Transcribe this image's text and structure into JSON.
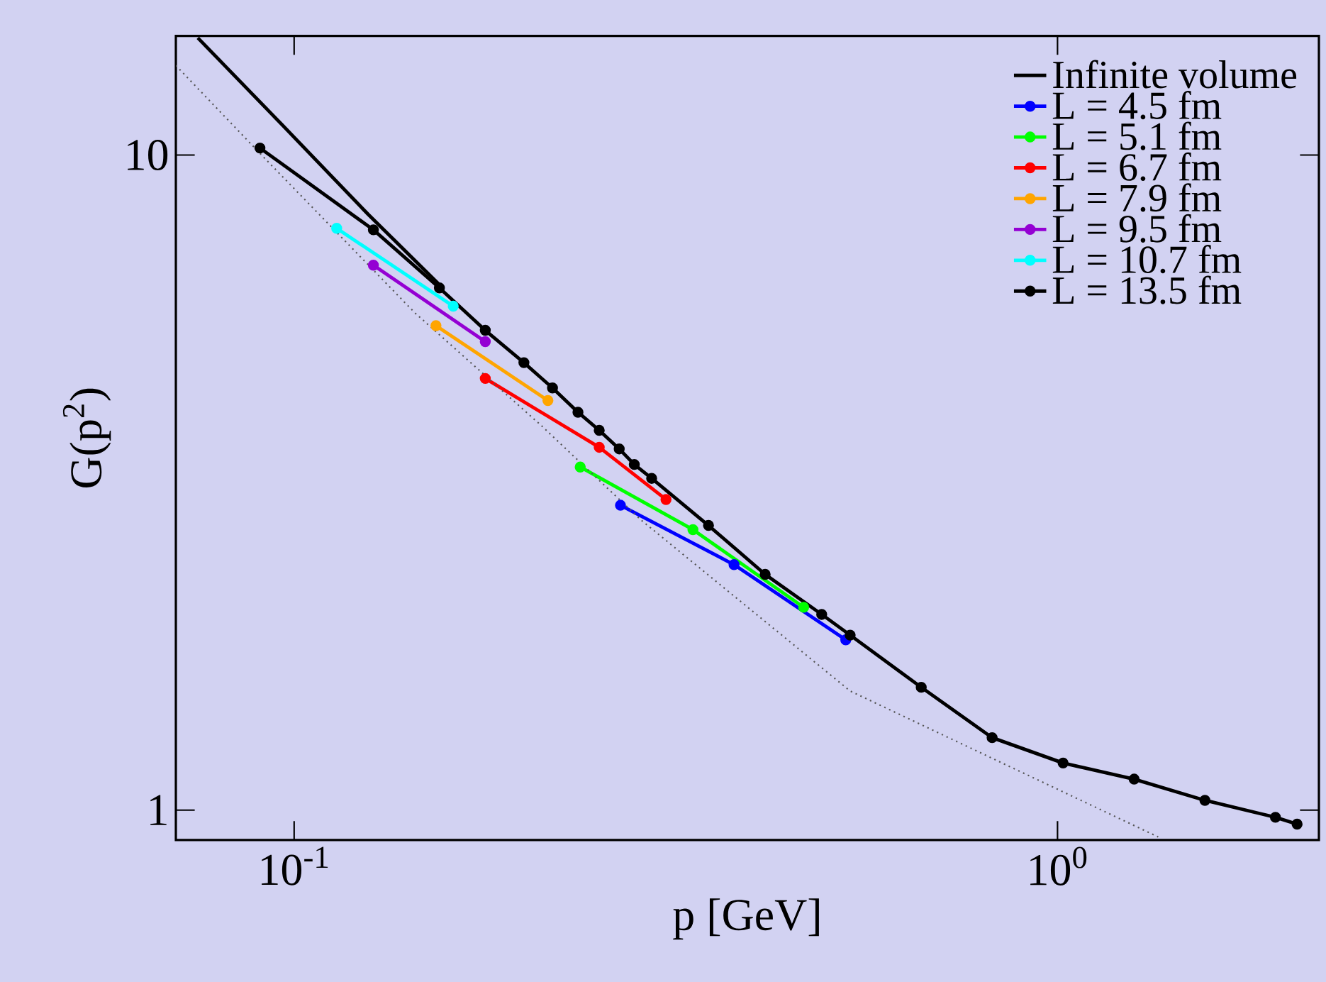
{
  "chart_data": {
    "type": "line",
    "xlabel": "p [GeV]",
    "ylabel": "G(p$^{2}$)",
    "log": "xy",
    "xlim": [
      0.07,
      2.2
    ],
    "ylim": [
      0.9,
      15.2
    ],
    "xticks": [
      {
        "value": 0.1,
        "label": "10$^{-1}$"
      },
      {
        "value": 1,
        "label": "10$^{0}$"
      }
    ],
    "yticks": [
      1,
      10
    ],
    "legend": "top right",
    "marker": "circle",
    "grid": false,
    "series": [
      {
        "name": "Infinite volume",
        "color": "#000000",
        "marker": "none",
        "x": [
          0.0748,
          0.0966,
          0.125,
          0.155
        ],
        "values": [
          15.1,
          11.1,
          8.12,
          6.34
        ]
      },
      {
        "name": "L = 4.5 fm",
        "color": "#0000ff",
        "x": [
          0.2676,
          0.377,
          0.528
        ],
        "values": [
          2.92,
          2.37,
          1.82
        ]
      },
      {
        "name": "L = 5.1 fm",
        "color": "#00ff00",
        "x": [
          0.237,
          0.333,
          0.465
        ],
        "values": [
          3.34,
          2.68,
          2.04
        ]
      },
      {
        "name": "L = 6.7 fm",
        "color": "#ff0000",
        "x": [
          0.178,
          0.251,
          0.307
        ],
        "values": [
          4.56,
          3.58,
          2.98
        ]
      },
      {
        "name": "L = 7.9 fm",
        "color": "#ffa500",
        "x": [
          0.1534,
          0.215
        ],
        "values": [
          5.49,
          4.22
        ]
      },
      {
        "name": "L = 9.5 fm",
        "color": "#9400d3",
        "x": [
          0.127,
          0.178
        ],
        "values": [
          6.79,
          5.19
        ]
      },
      {
        "name": "L = 10.7 fm",
        "color": "#00ffff",
        "x": [
          0.1137,
          0.1616
        ],
        "values": [
          7.73,
          5.88
        ]
      },
      {
        "name": "L = 13.5 fm",
        "color": "#000000",
        "x": [
          0.0902,
          0.127,
          0.155,
          0.178,
          0.2,
          0.218,
          0.2354,
          0.251,
          0.2666,
          0.279,
          0.294,
          0.349,
          0.414,
          0.491,
          0.535,
          0.663,
          0.821,
          1.017,
          1.26,
          1.56,
          1.93,
          2.06
        ],
        "values": [
          10.25,
          7.69,
          6.27,
          5.4,
          4.82,
          4.41,
          4.05,
          3.8,
          3.56,
          3.37,
          3.21,
          2.72,
          2.29,
          1.99,
          1.85,
          1.54,
          1.29,
          1.18,
          1.115,
          1.035,
          0.975,
          0.952
        ]
      },
      {
        "color": "#555555",
        "marker": "none",
        "line_style": "dotted",
        "x": [
          0.07,
          0.0914,
          0.144,
          0.211,
          0.285,
          0.535,
          1.355
        ],
        "values": [
          13.7,
          9.9,
          5.74,
          3.86,
          2.77,
          1.52,
          0.91
        ]
      }
    ]
  }
}
